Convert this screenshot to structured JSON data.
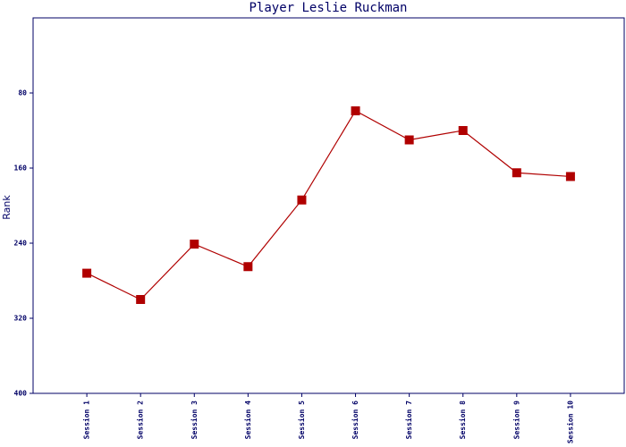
{
  "chart_data": {
    "type": "line",
    "title": "Player Leslie Ruckman",
    "y_label": "Rank",
    "categories": [
      "Session 1",
      "Session 2",
      "Session 3",
      "Session 4",
      "Session 5",
      "Session 6",
      "Session 7",
      "Session 8",
      "Session 9",
      "Session 10"
    ],
    "series": [
      {
        "name": "Rank",
        "color": "#b00000",
        "values": [
          272,
          300,
          241,
          265,
          194,
          99,
          130,
          120,
          165,
          169
        ]
      }
    ],
    "ylim": [
      400,
      0
    ],
    "yticks": [
      80,
      160,
      240,
      320,
      400
    ],
    "grid": false
  }
}
